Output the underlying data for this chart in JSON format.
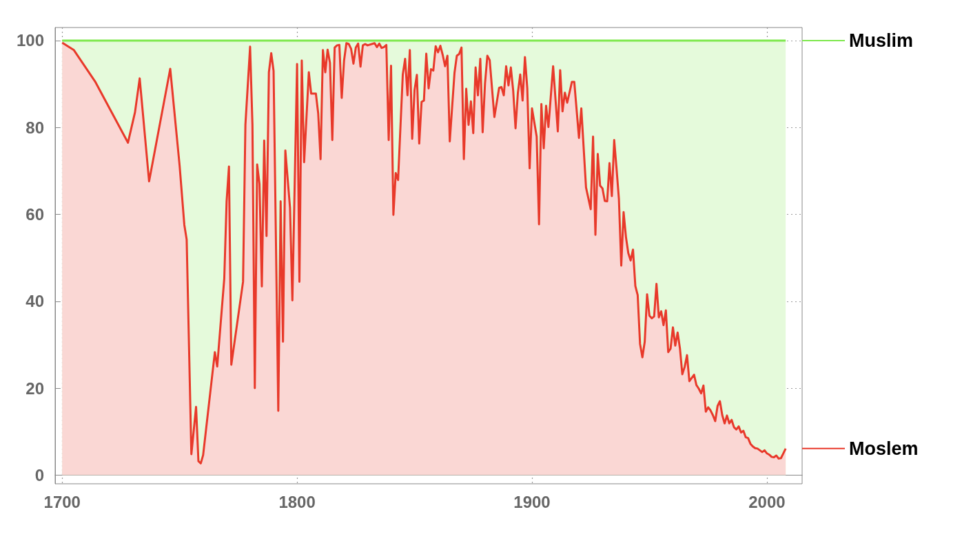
{
  "chart_data": {
    "type": "area",
    "stacked": true,
    "x": [
      1700,
      1705,
      1714,
      1728,
      1731,
      1733,
      1737,
      1746,
      1750,
      1752,
      1753,
      1755,
      1757,
      1758,
      1759,
      1760,
      1765,
      1766,
      1769,
      1770,
      1771,
      1772,
      1777,
      1778,
      1780,
      1781,
      1782,
      1783,
      1784,
      1785,
      1786,
      1787,
      1788,
      1789,
      1790,
      1792,
      1793,
      1794,
      1795,
      1797,
      1798,
      1800,
      1801,
      1802,
      1803,
      1805,
      1806,
      1808,
      1809,
      1810,
      1811,
      1812,
      1813,
      1814,
      1815,
      1816,
      1817,
      1818,
      1819,
      1820,
      1821,
      1822,
      1823,
      1824,
      1825,
      1826,
      1827,
      1828,
      1829,
      1830,
      1833,
      1834,
      1835,
      1836,
      1837,
      1838,
      1839,
      1840,
      1841,
      1842,
      1843,
      1845,
      1846,
      1847,
      1848,
      1849,
      1850,
      1851,
      1852,
      1853,
      1854,
      1855,
      1856,
      1857,
      1858,
      1859,
      1860,
      1861,
      1862,
      1863,
      1864,
      1865,
      1867,
      1868,
      1869,
      1870,
      1871,
      1872,
      1873,
      1874,
      1875,
      1876,
      1877,
      1878,
      1879,
      1880,
      1881,
      1882,
      1884,
      1886,
      1887,
      1888,
      1889,
      1890,
      1891,
      1892,
      1893,
      1894,
      1895,
      1896,
      1897,
      1898,
      1899,
      1900,
      1902,
      1903,
      1904,
      1905,
      1906,
      1907,
      1909,
      1911,
      1912,
      1913,
      1914,
      1915,
      1917,
      1918,
      1920,
      1921,
      1923,
      1925,
      1926,
      1927,
      1928,
      1929,
      1930,
      1931,
      1932,
      1933,
      1934,
      1935,
      1936,
      1937,
      1938,
      1939,
      1940,
      1941,
      1942,
      1943,
      1944,
      1945,
      1946,
      1947,
      1948,
      1949,
      1950,
      1951,
      1952,
      1953,
      1954,
      1955,
      1956,
      1957,
      1958,
      1959,
      1960,
      1961,
      1962,
      1963,
      1964,
      1965,
      1966,
      1967,
      1969,
      1970,
      1971,
      1972,
      1973,
      1974,
      1975,
      1976,
      1977,
      1978,
      1979,
      1980,
      1981,
      1982,
      1983,
      1984,
      1985,
      1986,
      1987,
      1988,
      1989,
      1990,
      1991,
      1992,
      1993,
      1994,
      1995,
      1996,
      1997,
      1998,
      1999,
      2000,
      2001,
      2002,
      2003,
      2004,
      2005,
      2006,
      2007,
      2008
    ],
    "series": [
      {
        "name": "Moslem",
        "color": "#e8392a",
        "values": [
          99.5,
          97.8,
          90.6,
          76.5,
          83.5,
          91.3,
          67.6,
          93.5,
          71.2,
          57.6,
          54.2,
          4.8,
          15.7,
          3.2,
          2.7,
          4.6,
          28.3,
          25,
          45.2,
          63,
          71,
          25.4,
          44.5,
          80.6,
          98.6,
          80.6,
          20,
          71.5,
          67,
          43.4,
          77,
          55,
          92.7,
          97.1,
          93,
          14.8,
          63,
          30.7,
          74.7,
          61.5,
          40.2,
          94.6,
          44.5,
          95.4,
          72,
          92.7,
          87.8,
          87.8,
          83.2,
          72.7,
          97.8,
          92.7,
          97.9,
          94.9,
          77.1,
          98.4,
          98.9,
          99,
          86.8,
          95.4,
          99.4,
          99.2,
          98.1,
          94.7,
          98.4,
          99.3,
          94,
          98.9,
          99.2,
          98.9,
          99.4,
          98.5,
          99.3,
          98.3,
          98.5,
          99,
          77.1,
          94.2,
          59.9,
          69.5,
          67.9,
          92.2,
          95.8,
          87.4,
          97.8,
          77.4,
          88.6,
          92.1,
          76.3,
          85.9,
          86.2,
          97,
          89,
          93.4,
          93.1,
          98.7,
          97.3,
          98.8,
          96.7,
          94.1,
          96.5,
          76.8,
          92.5,
          96.5,
          96.9,
          98.4,
          72.7,
          88.9,
          80.6,
          86,
          78.7,
          93.8,
          87.4,
          95.8,
          78.9,
          90.1,
          96.5,
          95.5,
          82.4,
          89.1,
          89.3,
          87.4,
          94.1,
          89.7,
          93.8,
          88.5,
          79.8,
          88,
          92.2,
          86.2,
          96.2,
          89,
          70.6,
          84.4,
          77.9,
          57.7,
          85.4,
          75.2,
          85,
          80.1,
          94.1,
          79.1,
          93.2,
          83.7,
          88,
          85.7,
          90.5,
          90.5,
          77.6,
          84.4,
          66.2,
          61.2,
          77.9,
          55.3,
          73.9,
          66.6,
          66,
          63.1,
          63,
          71.8,
          64.2,
          77.1,
          70.5,
          63.6,
          48.2,
          60.5,
          54.8,
          51.1,
          49.4,
          51.9,
          43.5,
          41.4,
          30.2,
          27.1,
          30.7,
          41.6,
          36.7,
          36.1,
          36.5,
          44,
          36.3,
          37.7,
          34.5,
          37.9,
          28.3,
          29.1,
          34,
          29.8,
          32.8,
          29.1,
          23.2,
          24.9,
          27.6,
          21.6,
          23.1,
          20.7,
          19.9,
          18.8,
          20.6,
          14.6,
          15.6,
          14.9,
          13.8,
          12.4,
          15.9,
          17,
          13.8,
          11.9,
          13.7,
          11.9,
          12.7,
          11,
          10.5,
          11.2,
          9.8,
          10.2,
          8.7,
          8.5,
          7.2,
          6.6,
          6.2,
          6.1,
          5.7,
          5.3,
          5.7,
          5,
          4.7,
          4.2,
          4.1,
          4.5,
          3.8,
          3.9,
          5,
          6.1
        ]
      },
      {
        "name": "Muslim",
        "color": "#7ee84d",
        "values": [
          0.5,
          2.2,
          9.4,
          23.5,
          16.5,
          8.7,
          32.4,
          6.5,
          28.8,
          42.4,
          45.8,
          95.2,
          84.3,
          96.8,
          97.3,
          95.4,
          71.7,
          75,
          54.8,
          37,
          29,
          74.6,
          55.5,
          19.4,
          1.4,
          19.4,
          80,
          28.5,
          33,
          56.6,
          23,
          45,
          7.3,
          2.9,
          7,
          85.2,
          37,
          69.3,
          25.3,
          38.5,
          59.8,
          5.4,
          55.5,
          4.6,
          28,
          7.3,
          12.2,
          12.2,
          16.8,
          27.3,
          2.2,
          7.3,
          2.1,
          5.1,
          22.9,
          1.6,
          1.1,
          1,
          13.2,
          4.6,
          0.6,
          0.8,
          1.9,
          5.3,
          1.6,
          0.7,
          6,
          1.1,
          0.8,
          1.1,
          0.6,
          1.5,
          0.7,
          1.7,
          1.5,
          1,
          22.9,
          5.8,
          40.1,
          30.5,
          32.1,
          7.8,
          4.2,
          12.6,
          2.2,
          22.6,
          11.4,
          7.9,
          23.7,
          14.1,
          13.8,
          3,
          11,
          6.6,
          6.9,
          1.3,
          2.7,
          1.2,
          3.3,
          5.9,
          3.5,
          23.2,
          7.5,
          3.5,
          3.1,
          1.6,
          27.3,
          11.1,
          19.4,
          14,
          21.3,
          6.2,
          12.6,
          4.2,
          21.1,
          9.9,
          3.5,
          4.5,
          17.6,
          10.9,
          10.7,
          12.6,
          5.9,
          10.3,
          6.2,
          11.5,
          20.2,
          12,
          7.8,
          13.8,
          3.8,
          11,
          29.4,
          15.6,
          22.1,
          42.3,
          14.6,
          24.8,
          15,
          19.9,
          5.9,
          20.9,
          6.8,
          16.3,
          12,
          14.3,
          9.5,
          9.5,
          22.4,
          15.6,
          33.8,
          38.8,
          22.1,
          44.7,
          26.1,
          33.4,
          34,
          36.9,
          37,
          28.2,
          35.8,
          22.9,
          29.5,
          36.4,
          51.8,
          39.5,
          45.2,
          48.9,
          50.6,
          48.1,
          56.5,
          58.6,
          69.8,
          72.9,
          69.3,
          58.4,
          63.3,
          63.9,
          63.5,
          56,
          63.7,
          62.3,
          65.5,
          62.1,
          71.7,
          70.9,
          66,
          70.2,
          67.2,
          70.9,
          76.8,
          75.1,
          72.4,
          78.4,
          76.9,
          79.3,
          80.1,
          81.2,
          79.4,
          85.4,
          84.4,
          85.1,
          86.2,
          87.6,
          84.1,
          83,
          86.2,
          88.1,
          86.3,
          88.1,
          87.3,
          89,
          89.5,
          88.8,
          90.2,
          89.8,
          91.3,
          91.5,
          92.8,
          93.4,
          93.8,
          93.9,
          94.3,
          94.7,
          94.3,
          95,
          95.3,
          95.8,
          95.9,
          95.5,
          96.2,
          96.1,
          95,
          93.9
        ]
      }
    ],
    "xlim": [
      1697,
      2015
    ],
    "xticks": [
      1700,
      1800,
      1900,
      2000
    ],
    "ylim": [
      -2,
      103
    ],
    "yticks": [
      0,
      20,
      40,
      60,
      80,
      100
    ],
    "grid": true,
    "legend": "right"
  }
}
